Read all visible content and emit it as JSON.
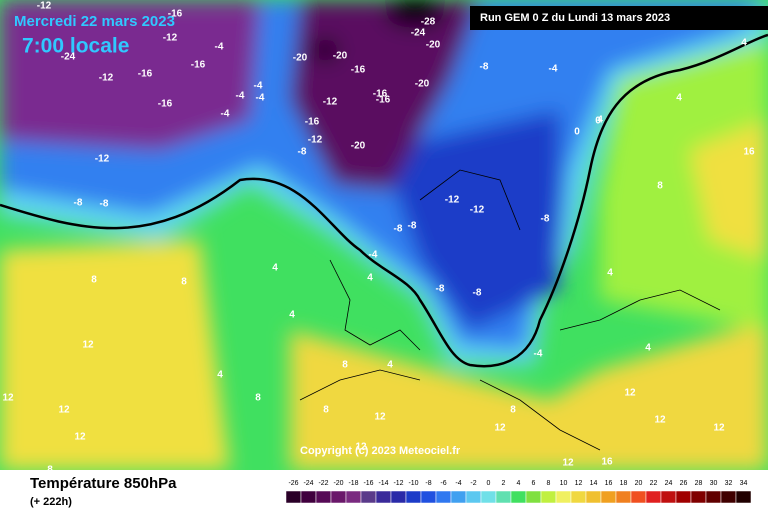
{
  "header": {
    "date": "Mercredi 22 mars 2023",
    "time": "7:00 locale"
  },
  "run_info": "Run GEM 0 Z du Lundi 13 mars 2023",
  "copyright": "Copyright (c) 2023 Meteociel.fr",
  "footer": {
    "title": "Température 850hPa",
    "step": "(+ 222h)"
  },
  "legend": {
    "values": [
      -26,
      -24,
      -22,
      -20,
      -18,
      -16,
      -14,
      -12,
      -10,
      -8,
      -6,
      -4,
      -2,
      0,
      2,
      4,
      6,
      8,
      10,
      12,
      14,
      16,
      18,
      20,
      22,
      24,
      26,
      28,
      30,
      32,
      34
    ],
    "colors": [
      "#2a0028",
      "#40003e",
      "#560a56",
      "#6a186a",
      "#7a2a80",
      "#5a3a8a",
      "#3a2a9a",
      "#2a2aa8",
      "#1c3cc8",
      "#2050e0",
      "#3078f0",
      "#40a0f0",
      "#5cc8f0",
      "#70e0e8",
      "#60e0b0",
      "#40e060",
      "#80e040",
      "#c0f040",
      "#f0f060",
      "#f0d840",
      "#f0c030",
      "#f0a020",
      "#f08020",
      "#f05020",
      "#e02020",
      "#c01010",
      "#a00000",
      "#800000",
      "#600000",
      "#400000",
      "#200000"
    ]
  },
  "map": {
    "contour_labels": [
      -12,
      -16,
      -12,
      -4,
      -24,
      -20,
      -16,
      -12,
      -16,
      -4,
      -16,
      -4,
      -12,
      -16,
      -4,
      -4,
      -16,
      -20,
      -24,
      -28,
      -20,
      -20,
      -16,
      -12,
      -16,
      -8,
      -4,
      -12,
      -8,
      -20,
      -8,
      -8,
      -12,
      -8,
      -8,
      -12,
      -8,
      -4,
      -8,
      -8,
      -4,
      0,
      0,
      4,
      4,
      4,
      8,
      4,
      4,
      16,
      4,
      8,
      8,
      12,
      12,
      8,
      4,
      4,
      8,
      8,
      12,
      12,
      12,
      4,
      12,
      8,
      12,
      12,
      12,
      16,
      12,
      12,
      8,
      4
    ]
  }
}
